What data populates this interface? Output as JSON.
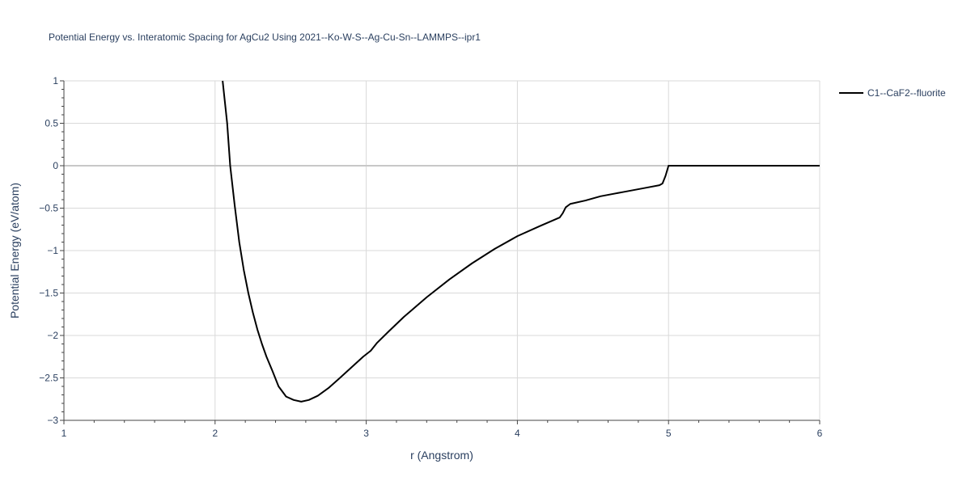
{
  "chart_data": {
    "type": "line",
    "title": "Potential Energy vs. Interatomic Spacing for AgCu2 Using 2021--Ko-W-S--Ag-Cu-Sn--LAMMPS--ipr1",
    "xlabel": "r (Angstrom)",
    "ylabel": "Potential Energy (eV/atom)",
    "xlim": [
      1,
      6
    ],
    "ylim": [
      -3,
      1
    ],
    "xticks": [
      1,
      2,
      3,
      4,
      5,
      6
    ],
    "xtick_labels": [
      "1",
      "2",
      "3",
      "4",
      "5",
      "6"
    ],
    "yticks": [
      -3,
      -2.5,
      -2,
      -1.5,
      -1,
      -0.5,
      0,
      0.5,
      1
    ],
    "ytick_labels": [
      "−3",
      "−2.5",
      "−2",
      "−1.5",
      "−1",
      "−0.5",
      "0",
      "0.5",
      "1"
    ],
    "grid": true,
    "legend_position": "top-right",
    "series": [
      {
        "name": "C1--CaF2--fluorite",
        "color": "#000000",
        "x": [
          2.05,
          2.08,
          2.1,
          2.13,
          2.16,
          2.19,
          2.22,
          2.25,
          2.28,
          2.31,
          2.34,
          2.38,
          2.42,
          2.47,
          2.52,
          2.57,
          2.62,
          2.68,
          2.75,
          2.82,
          2.9,
          2.98,
          3.03,
          3.07,
          3.15,
          3.25,
          3.4,
          3.55,
          3.7,
          3.85,
          4.0,
          4.15,
          4.28,
          4.3,
          4.32,
          4.35,
          4.45,
          4.55,
          4.7,
          4.85,
          4.94,
          4.96,
          4.98,
          5.0,
          5.2,
          5.5,
          6.0
        ],
        "y": [
          1.0,
          0.5,
          0.0,
          -0.47,
          -0.9,
          -1.23,
          -1.5,
          -1.73,
          -1.93,
          -2.1,
          -2.25,
          -2.42,
          -2.6,
          -2.72,
          -2.76,
          -2.78,
          -2.76,
          -2.71,
          -2.62,
          -2.51,
          -2.38,
          -2.25,
          -2.18,
          -2.09,
          -1.95,
          -1.78,
          -1.55,
          -1.34,
          -1.15,
          -0.98,
          -0.83,
          -0.71,
          -0.61,
          -0.56,
          -0.49,
          -0.45,
          -0.41,
          -0.36,
          -0.31,
          -0.26,
          -0.23,
          -0.21,
          -0.12,
          0.0,
          0.0,
          0.0,
          0.0
        ]
      }
    ]
  }
}
